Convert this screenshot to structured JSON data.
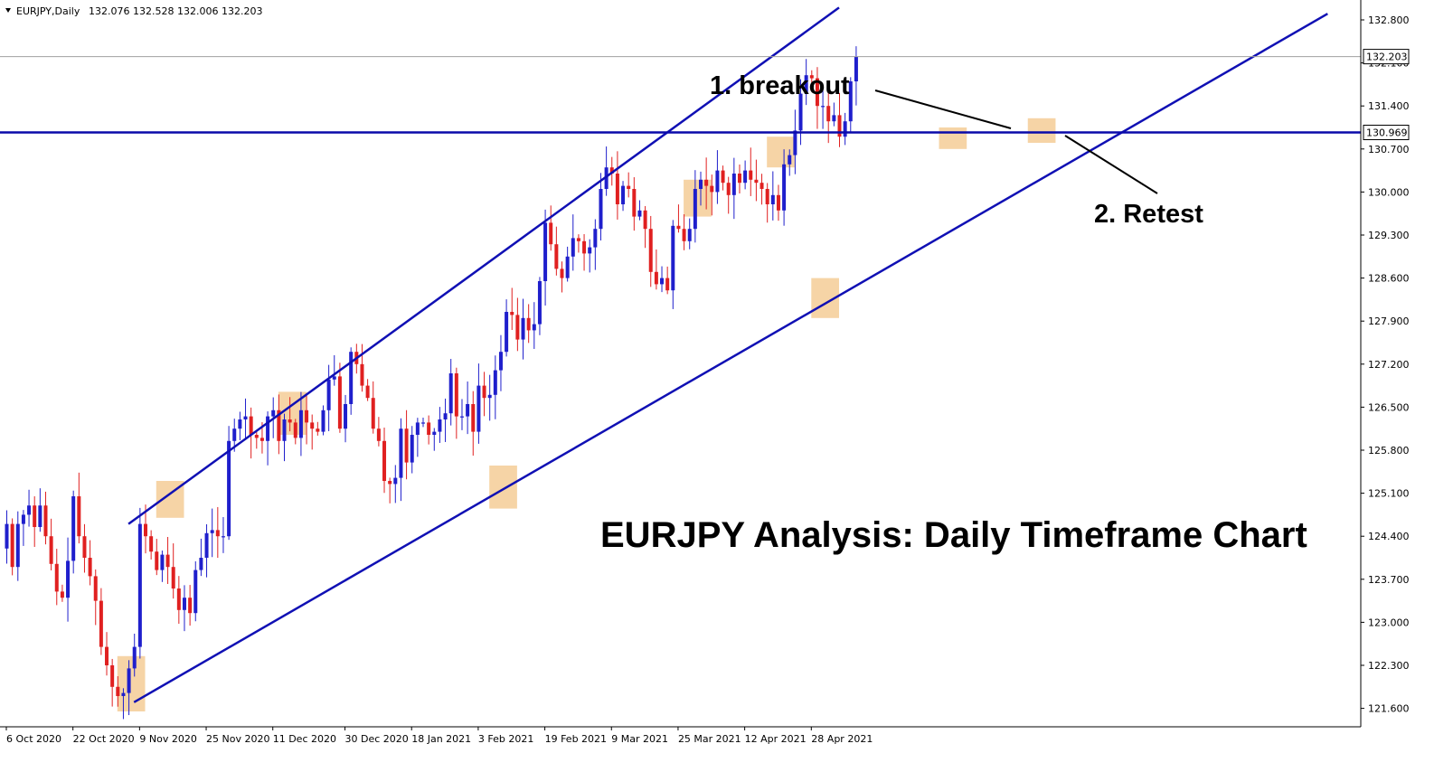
{
  "header": {
    "symbol_label": "EURJPY,Daily",
    "ohlc": "132.076 132.528 132.006 132.203"
  },
  "colors": {
    "bull_body": "#1f1fcc",
    "bear_body": "#e02020",
    "channel_line": "#1010b4",
    "horizontal_level": "#0a0aaa",
    "highlight_box": "#f5cc96",
    "axis_line": "#000000",
    "price_tag_bg": "#ffffff"
  },
  "annotations": {
    "breakout": "1. breakout",
    "retest": "2. Retest",
    "chart_title": "EURJPY Analysis: Daily Timeframe Chart"
  },
  "chart_data": {
    "type": "candlestick",
    "symbol": "EURJPY",
    "timeframe": "Daily",
    "title": "EURJPY Analysis: Daily Timeframe Chart",
    "ylim": [
      121.3,
      133.05
    ],
    "y_ticks": [
      "132.800",
      "132.100",
      "131.400",
      "130.700",
      "130.000",
      "129.300",
      "128.600",
      "127.900",
      "127.200",
      "126.500",
      "125.800",
      "125.100",
      "124.400",
      "123.700",
      "123.000",
      "122.300",
      "121.600"
    ],
    "x_ticks": [
      {
        "label": "6 Oct 2020",
        "bar": 0
      },
      {
        "label": "22 Oct 2020",
        "bar": 12
      },
      {
        "label": "9 Nov 2020",
        "bar": 24
      },
      {
        "label": "25 Nov 2020",
        "bar": 36
      },
      {
        "label": "11 Dec 2020",
        "bar": 48
      },
      {
        "label": "30 Dec 2020",
        "bar": 61
      },
      {
        "label": "18 Jan 2021",
        "bar": 73
      },
      {
        "label": "3 Feb 2021",
        "bar": 85
      },
      {
        "label": "19 Feb 2021",
        "bar": 97
      },
      {
        "label": "9 Mar 2021",
        "bar": 109
      },
      {
        "label": "25 Mar 2021",
        "bar": 121
      },
      {
        "label": "12 Apr 2021",
        "bar": 133
      },
      {
        "label": "28 Apr 2021",
        "bar": 145
      }
    ],
    "closes": [
      124.6,
      123.9,
      124.6,
      124.75,
      124.9,
      124.55,
      124.9,
      124.4,
      123.95,
      123.5,
      123.4,
      124.0,
      125.05,
      124.4,
      124.05,
      123.75,
      123.35,
      122.6,
      122.3,
      121.95,
      121.8,
      121.85,
      122.25,
      122.6,
      124.6,
      124.4,
      124.15,
      123.85,
      124.1,
      123.9,
      123.55,
      123.2,
      123.4,
      123.15,
      123.85,
      124.05,
      124.45,
      124.5,
      124.4,
      124.4,
      125.95,
      126.15,
      126.3,
      126.35,
      126.05,
      126.0,
      125.95,
      126.35,
      126.45,
      125.95,
      126.3,
      126.25,
      126.0,
      126.45,
      126.25,
      126.15,
      126.1,
      126.45,
      126.95,
      127.0,
      126.15,
      126.55,
      127.4,
      127.2,
      126.85,
      126.65,
      126.15,
      125.95,
      125.3,
      125.25,
      125.35,
      126.15,
      125.6,
      126.05,
      126.25,
      126.25,
      126.05,
      126.1,
      126.3,
      126.4,
      127.05,
      126.35,
      126.35,
      126.55,
      126.1,
      126.85,
      126.65,
      126.7,
      127.1,
      127.4,
      128.05,
      128.0,
      127.6,
      127.95,
      127.75,
      127.85,
      128.55,
      129.5,
      129.15,
      128.75,
      128.6,
      128.95,
      129.25,
      129.2,
      129.0,
      129.1,
      129.4,
      130.05,
      130.4,
      130.3,
      129.8,
      130.1,
      130.05,
      129.6,
      129.7,
      129.4,
      128.7,
      128.5,
      128.6,
      128.4,
      129.45,
      129.4,
      129.2,
      129.4,
      130.05,
      130.2,
      130.1,
      130.0,
      130.35,
      130.15,
      129.95,
      130.3,
      130.15,
      130.35,
      130.2,
      130.15,
      130.05,
      129.8,
      129.95,
      129.7,
      130.45,
      130.6,
      131.0,
      131.6,
      131.9,
      131.85,
      131.4,
      131.4,
      131.15,
      131.25,
      130.9,
      131.15,
      131.8,
      132.2
    ],
    "price_line": 132.203,
    "horizontal_level": 130.969,
    "channel": {
      "upper": {
        "bar1": 22,
        "price1": 124.6,
        "bar2": 150,
        "price2": 133.0
      },
      "lower": {
        "bar1": 23,
        "price1": 121.7,
        "bar2": 238,
        "price2": 132.9
      }
    },
    "highlight_zones": [
      {
        "bar_from": 20,
        "bar_to": 25,
        "low": 121.55,
        "high": 122.45
      },
      {
        "bar_from": 27,
        "bar_to": 32,
        "low": 124.7,
        "high": 125.3
      },
      {
        "bar_from": 49,
        "bar_to": 54,
        "low": 126.05,
        "high": 126.75
      },
      {
        "bar_from": 87,
        "bar_to": 92,
        "low": 124.85,
        "high": 125.55
      },
      {
        "bar_from": 122,
        "bar_to": 127,
        "low": 129.6,
        "high": 130.2
      },
      {
        "bar_from": 137,
        "bar_to": 142,
        "low": 130.4,
        "high": 130.9
      },
      {
        "bar_from": 145,
        "bar_to": 150,
        "low": 127.95,
        "high": 128.6
      },
      {
        "bar_from": 168,
        "bar_to": 173,
        "low": 130.7,
        "high": 131.05
      },
      {
        "bar_from": 184,
        "bar_to": 189,
        "low": 130.8,
        "high": 131.2
      }
    ]
  }
}
